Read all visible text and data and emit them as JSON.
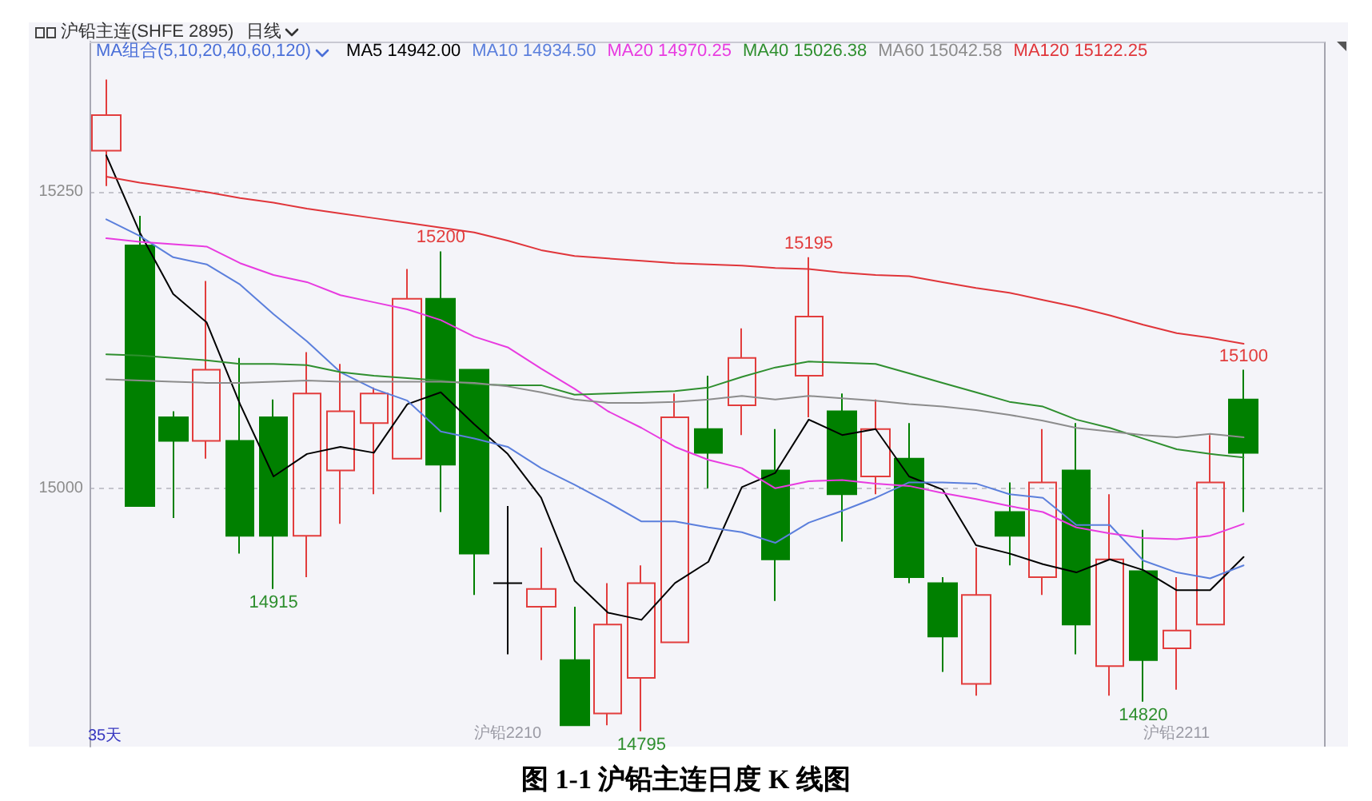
{
  "chart_data": {
    "type": "candlestick",
    "title": "沪铅主连(SHFE 2895)",
    "legend_title": "MA组合(5,10,20,40,60,120)",
    "annotations": [
      "日线",
      "35天",
      "图 1-1 沪铅主连日度 K 线图",
      {
        "text": "15200",
        "y": 15200
      },
      {
        "text": "15195",
        "y": 15195
      },
      {
        "text": "15100",
        "y": 15100
      },
      {
        "text": "14915",
        "y": 14915
      },
      {
        "text": "14795",
        "y": 14795
      },
      {
        "text": "14820",
        "y": 14820
      }
    ],
    "categories": [
      null,
      null,
      null,
      null,
      null,
      null,
      null,
      null,
      null,
      null,
      null,
      null,
      "沪铅2210",
      null,
      null,
      null,
      null,
      null,
      null,
      null,
      null,
      null,
      null,
      null,
      null,
      null,
      null,
      null,
      null,
      null,
      null,
      null,
      "沪铅2211",
      null,
      null
    ],
    "ohlc": [
      [
        15285,
        15345,
        15255,
        15315
      ],
      [
        15205,
        15230,
        14985,
        14985
      ],
      [
        15060,
        15065,
        14975,
        15040
      ],
      [
        15040,
        15175,
        15025,
        15100
      ],
      [
        15040,
        15110,
        14945,
        14960
      ],
      [
        15060,
        15075,
        14915,
        14960
      ],
      [
        14960,
        15115,
        14925,
        15080
      ],
      [
        15015,
        15105,
        14970,
        15065
      ],
      [
        15055,
        15085,
        14995,
        15080
      ],
      [
        15025,
        15185,
        15025,
        15160
      ],
      [
        15160,
        15200,
        14980,
        15020
      ],
      [
        15100,
        15100,
        14910,
        14945
      ],
      [
        14920,
        14985,
        14860,
        14920
      ],
      [
        14900,
        14950,
        14855,
        14915
      ],
      [
        14855,
        14900,
        14800,
        14800
      ],
      [
        14810,
        14920,
        14800,
        14885
      ],
      [
        14840,
        14935,
        14795,
        14920
      ],
      [
        14870,
        15080,
        14870,
        15060
      ],
      [
        15050,
        15095,
        15000,
        15030
      ],
      [
        15070,
        15135,
        15045,
        15110
      ],
      [
        15015,
        15050,
        14905,
        14940
      ],
      [
        15095,
        15195,
        15060,
        15145
      ],
      [
        15065,
        15080,
        14955,
        14995
      ],
      [
        15010,
        15075,
        14995,
        15050
      ],
      [
        15025,
        15055,
        14920,
        14925
      ],
      [
        14920,
        14925,
        14845,
        14875
      ],
      [
        14835,
        14950,
        14825,
        14910
      ],
      [
        14980,
        15005,
        14935,
        14960
      ],
      [
        14925,
        15050,
        14910,
        15005
      ],
      [
        15015,
        15055,
        14860,
        14885
      ],
      [
        14850,
        14995,
        14825,
        14940
      ],
      [
        14930,
        14965,
        14820,
        14855
      ],
      [
        14865,
        14925,
        14830,
        14880
      ],
      [
        14885,
        15045,
        14885,
        15005
      ],
      [
        15075,
        15100,
        14980,
        15030
      ]
    ],
    "colors": [
      "#e23d3d",
      "#008000",
      "#008000",
      "#e23d3d",
      "#008000",
      "#008000",
      "#e23d3d",
      "#e23d3d",
      "#e23d3d",
      "#e23d3d",
      "#008000",
      "#008000",
      "#000000",
      "#e23d3d",
      "#008000",
      "#e23d3d",
      "#e23d3d",
      "#e23d3d",
      "#008000",
      "#e23d3d",
      "#008000",
      "#e23d3d",
      "#008000",
      "#e23d3d",
      "#008000",
      "#008000",
      "#e23d3d",
      "#008000",
      "#e23d3d",
      "#008000",
      "#e23d3d",
      "#008000",
      "#e23d3d",
      "#e23d3d",
      "#008000"
    ],
    "series": [
      {
        "type": "line",
        "name": "MA5 14942.00",
        "color": "#000000",
        "values": [
          15281,
          15216,
          15164,
          15140,
          15071,
          15010,
          15029,
          15035,
          15030,
          15071,
          15081,
          15054,
          15029,
          14992,
          14922,
          14895,
          14889,
          14920,
          14938,
          15001,
          15013,
          15058,
          15045,
          15050,
          15010,
          14999,
          14952,
          14945,
          14936,
          14929,
          14940,
          14931,
          14914,
          14914,
          14942
        ]
      },
      {
        "type": "line",
        "name": "MA10 14934.50",
        "color": "#5b7fdc",
        "values": [
          15227,
          15213,
          15195,
          15189,
          15172,
          15147,
          15124,
          15098,
          15084,
          15074,
          15048,
          15042,
          15035,
          15017,
          15003,
          14988,
          14972,
          14972,
          14967,
          14963,
          14954,
          14971,
          14981,
          14992,
          15005,
          15005,
          15004,
          14995,
          14992,
          14969,
          14969,
          14939,
          14929,
          14924,
          14935
        ]
      },
      {
        "type": "line",
        "name": "MA20 14970.25",
        "color": "#e83be0",
        "values": [
          15211,
          15208,
          15206,
          15204,
          15190,
          15180,
          15174,
          15163,
          15157,
          15151,
          15142,
          15128,
          15119,
          15101,
          15084,
          15065,
          15051,
          15035,
          15024,
          15017,
          15000,
          15006,
          15007,
          15004,
          15002,
          14996,
          14991,
          14985,
          14980,
          14967,
          14962,
          14958,
          14957,
          14960,
          14970
        ]
      },
      {
        "type": "line",
        "name": "MA40 15026.38",
        "color": "#2f8f2f",
        "values": [
          15113,
          15112,
          15110,
          15108,
          15105,
          15105,
          15104,
          15098,
          15095,
          15093,
          15091,
          15088,
          15087,
          15087,
          15079,
          15080,
          15081,
          15082,
          15085,
          15094,
          15102,
          15107,
          15106,
          15105,
          15097,
          15089,
          15081,
          15073,
          15069,
          15058,
          15051,
          15042,
          15033,
          15029,
          15026
        ]
      },
      {
        "type": "line",
        "name": "MA60 15042.58",
        "color": "#8c8c8c",
        "values": [
          15092,
          15091,
          15090,
          15089,
          15089,
          15090,
          15091,
          15090,
          15090,
          15090,
          15090,
          15089,
          15086,
          15081,
          15075,
          15072,
          15072,
          15073,
          15075,
          15078,
          15075,
          15078,
          15076,
          15074,
          15071,
          15069,
          15066,
          15062,
          15057,
          15051,
          15048,
          15045,
          15043,
          15046,
          15043
        ]
      },
      {
        "type": "line",
        "name": "MA120 15122.25",
        "color": "#e0353a",
        "values": [
          15263,
          15258,
          15254,
          15250,
          15245,
          15241,
          15236,
          15232,
          15228,
          15224,
          15220,
          15216,
          15209,
          15201,
          15196,
          15194,
          15192,
          15190,
          15189,
          15188,
          15186,
          15185,
          15182,
          15180,
          15179,
          15174,
          15169,
          15165,
          15159,
          15153,
          15146,
          15138,
          15131,
          15127,
          15122
        ]
      }
    ],
    "ylim": [
      14782,
      15377
    ],
    "yticks": [
      15000,
      15250
    ],
    "grid": "y",
    "marker": "none",
    "line_style": "solid"
  }
}
